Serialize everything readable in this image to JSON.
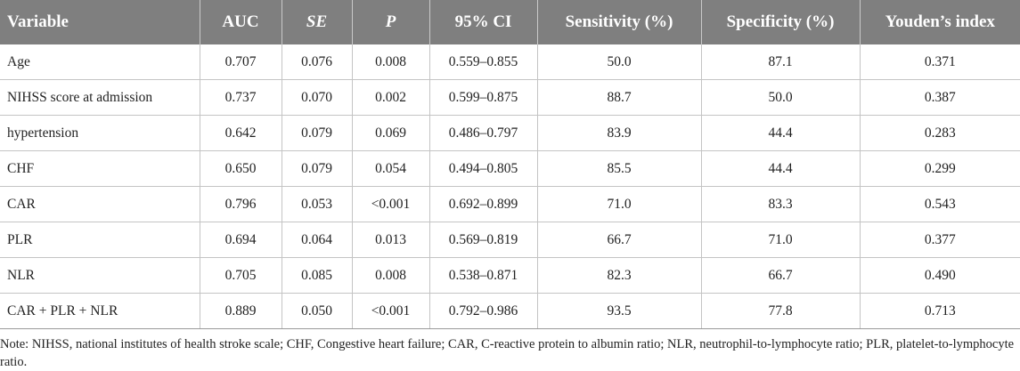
{
  "table": {
    "headers": [
      "Variable",
      "AUC",
      "SE",
      "P",
      "95% CI",
      "Sensitivity (%)",
      "Specificity (%)",
      "Youden’s index"
    ],
    "rows": [
      [
        "Age",
        "0.707",
        "0.076",
        "0.008",
        "0.559–0.855",
        "50.0",
        "87.1",
        "0.371"
      ],
      [
        "NIHSS score at admission",
        "0.737",
        "0.070",
        "0.002",
        "0.599–0.875",
        "88.7",
        "50.0",
        "0.387"
      ],
      [
        "hypertension",
        "0.642",
        "0.079",
        "0.069",
        "0.486–0.797",
        "83.9",
        "44.4",
        "0.283"
      ],
      [
        "CHF",
        "0.650",
        "0.079",
        "0.054",
        "0.494–0.805",
        "85.5",
        "44.4",
        "0.299"
      ],
      [
        "CAR",
        "0.796",
        "0.053",
        "<0.001",
        "0.692–0.899",
        "71.0",
        "83.3",
        "0.543"
      ],
      [
        "PLR",
        "0.694",
        "0.064",
        "0.013",
        "0.569–0.819",
        "66.7",
        "71.0",
        "0.377"
      ],
      [
        "NLR",
        "0.705",
        "0.085",
        "0.008",
        "0.538–0.871",
        "82.3",
        "66.7",
        "0.490"
      ],
      [
        "CAR + PLR + NLR",
        "0.889",
        "0.050",
        "<0.001",
        "0.792–0.986",
        "93.5",
        "77.8",
        "0.713"
      ]
    ]
  },
  "note": "Note: NIHSS, national institutes of health stroke scale; CHF, Congestive heart failure; CAR, C-reactive protein to albumin ratio; NLR, neutrophil-to-lymphocyte ratio; PLR, platelet-to-lymphocyte ratio.",
  "colors": {
    "header_bg": "#7f7f7f",
    "header_text": "#ffffff",
    "grid": "#c4c4c4"
  }
}
